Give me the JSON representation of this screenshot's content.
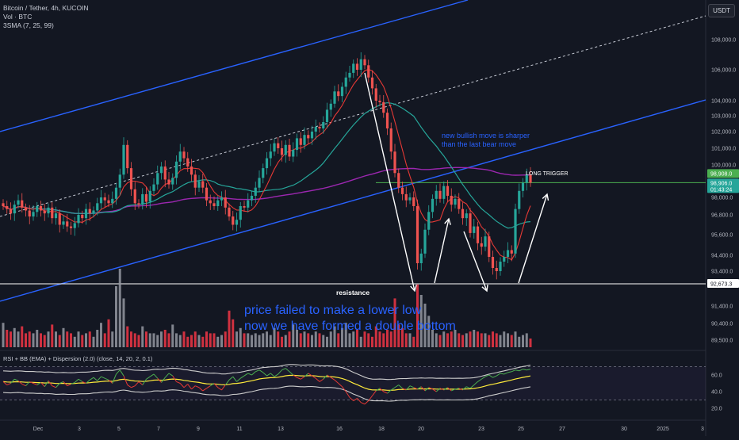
{
  "header": {
    "symbol_line": "Bitcoin / Tether, 4h, KUCOIN",
    "volume_line": "Vol · BTC",
    "ma_line": "3SMA (7, 25, 99)",
    "currency": "USDT"
  },
  "annotations": {
    "bullish_note": [
      "new bullish move is sharper",
      "than the last bear move"
    ],
    "long_trigger": "LONG TRIGGER",
    "resistance": "resistance",
    "main_note": [
      "price failed to make a lower low",
      "now we have formed a double bottom"
    ]
  },
  "price_tags": {
    "current_upper": "98,908.0",
    "current_lower": "98,906.0",
    "countdown": "01:43:24",
    "support": "92,673.3"
  },
  "rsi_legend": "RSI + BB (EMA) + Dispersion (2.0) (close, 14, 20, 2, 0.1)",
  "colors": {
    "up": "#26a69a",
    "down": "#ef5350",
    "channel": "#2962ff",
    "trigger": "#4caf50",
    "rsi": "#4caf50",
    "bb": "#cccccc",
    "ema": "#ffeb3b"
  },
  "chart_data": {
    "type": "candlestick",
    "price_axis_ticks": [
      108000,
      106000,
      104000,
      103000,
      102000,
      101000,
      100000,
      98000,
      96800,
      95600,
      94400,
      93400,
      91400,
      90400,
      89500
    ],
    "time_axis_labels": [
      "Dec",
      "3",
      "5",
      "7",
      "9",
      "11",
      "13",
      "16",
      "18",
      "20",
      "23",
      "25",
      "27",
      "30",
      "2025",
      "3"
    ],
    "rsi_axis_ticks": [
      60.0,
      40.0,
      20.0
    ],
    "long_trigger_level": 98907,
    "support_level": 92673.3,
    "last_price": 98906.0,
    "close_prices": [
      97400,
      97200,
      96900,
      97500,
      97800,
      97300,
      97100,
      96700,
      97000,
      97400,
      97100,
      96900,
      97300,
      96600,
      96900,
      96200,
      96400,
      96100,
      96000,
      96300,
      96800,
      96600,
      97200,
      96900,
      97100,
      97600,
      98000,
      97800,
      97600,
      97900,
      98600,
      99400,
      101200,
      99800,
      98500,
      97600,
      97500,
      98200,
      97700,
      98400,
      98800,
      99500,
      99900,
      99100,
      98800,
      99200,
      100200,
      100800,
      100400,
      99900,
      99400,
      98600,
      99000,
      98600,
      97800,
      97600,
      97400,
      97800,
      98000,
      97300,
      96700,
      96200,
      96500,
      97400,
      97300,
      97800,
      98100,
      98600,
      99200,
      99800,
      100400,
      100800,
      101300,
      101000,
      100600,
      101200,
      100500,
      100900,
      101600,
      101200,
      101800,
      101600,
      102000,
      102300,
      102200,
      102600,
      103400,
      103800,
      104600,
      104300,
      104900,
      105500,
      105800,
      106400,
      106000,
      106700,
      106300,
      105500,
      104800,
      104000,
      103900,
      103200,
      102200,
      100800,
      99500,
      98600,
      98200,
      97800,
      98000,
      97400,
      93900,
      94500,
      95900,
      97000,
      97900,
      98400,
      97900,
      98700,
      98100,
      97500,
      97900,
      97200,
      96600,
      96900,
      95700,
      96100,
      95100,
      94900,
      95500,
      94300,
      93600,
      93400,
      94000,
      94300,
      94700,
      94500,
      97200,
      98400,
      98900,
      99400,
      98906
    ],
    "volume": [
      14,
      10,
      9,
      11,
      9,
      12,
      8,
      9,
      8,
      10,
      8,
      7,
      9,
      13,
      9,
      7,
      11,
      9,
      8,
      6,
      9,
      7,
      8,
      9,
      6,
      10,
      14,
      8,
      16,
      9,
      35,
      45,
      28,
      12,
      9,
      8,
      7,
      12,
      9,
      8,
      8,
      7,
      9,
      10,
      8,
      13,
      8,
      7,
      9,
      6,
      7,
      9,
      7,
      6,
      9,
      8,
      8,
      6,
      7,
      9,
      21,
      16,
      9,
      11,
      8,
      8,
      7,
      8,
      7,
      8,
      9,
      7,
      11,
      9,
      6,
      7,
      9,
      13,
      10,
      8,
      9,
      8,
      7,
      9,
      8,
      7,
      6,
      9,
      12,
      8,
      11,
      14,
      8,
      9,
      10,
      6,
      9,
      8,
      6,
      12,
      9,
      8,
      10,
      9,
      28,
      13,
      11,
      8,
      8,
      6,
      36,
      30,
      25,
      18,
      10,
      8,
      7,
      9,
      8,
      9,
      10,
      8,
      7,
      8,
      9,
      10,
      9,
      8,
      8,
      7,
      9,
      8,
      7,
      9,
      8,
      7,
      9,
      6,
      7,
      8,
      5
    ],
    "rsi": [
      52,
      48,
      50,
      55,
      53,
      49,
      47,
      52,
      50,
      48,
      51,
      46,
      53,
      47,
      45,
      50,
      52,
      47,
      49,
      51,
      55,
      52,
      50,
      54,
      57,
      53,
      58,
      56,
      54,
      50,
      61,
      66,
      59,
      48,
      45,
      47,
      52,
      48,
      55,
      58,
      61,
      56,
      51,
      57,
      62,
      59,
      52,
      50,
      45,
      49,
      43,
      47,
      45,
      41,
      44,
      47,
      50,
      45,
      42,
      48,
      54,
      58,
      52,
      56,
      59,
      62,
      60,
      64,
      66,
      63,
      59,
      62,
      58,
      61,
      66,
      68,
      64,
      60,
      57,
      55,
      58,
      62,
      59,
      56,
      52,
      55,
      60,
      57,
      54,
      50,
      46,
      40,
      33,
      29,
      32,
      27,
      25,
      29,
      35,
      41,
      44,
      40,
      38,
      42,
      45,
      48,
      44,
      42,
      47,
      45,
      43,
      46,
      41,
      45,
      43,
      40,
      44,
      42,
      45,
      41,
      43,
      44,
      42,
      46,
      44,
      48,
      52,
      55,
      58,
      60,
      57,
      59,
      62,
      61,
      63,
      64,
      66,
      65,
      67,
      66,
      67
    ],
    "series": [
      {
        "name": "Volume"
      },
      {
        "name": "RSI"
      }
    ]
  }
}
